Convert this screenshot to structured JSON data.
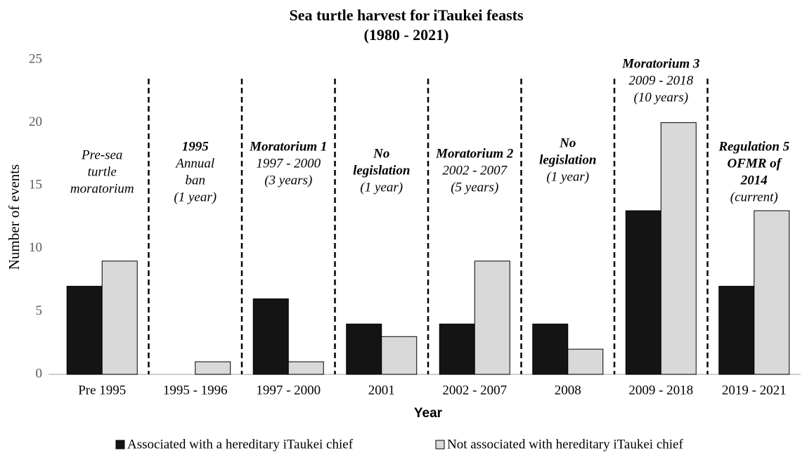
{
  "chart_data": {
    "type": "bar",
    "title": "Sea turtle harvest for iTaukei feasts",
    "subtitle": "(1980 - 2021)",
    "x_label": "Year",
    "y_label": "Number of events",
    "categories": [
      "Pre 1995",
      "1995 - 1996",
      "1997 - 2000",
      "2001",
      "2002 - 2007",
      "2008",
      "2009 - 2018",
      "2019 - 2021"
    ],
    "series": [
      {
        "name": "Associated with a hereditary iTaukei chief",
        "color": "#141414",
        "values": [
          7,
          0,
          6,
          4,
          4,
          4,
          13,
          7
        ]
      },
      {
        "name": "Not associated with hereditary iTaukei chief",
        "color": "#d9d9d9",
        "values": [
          9,
          1,
          1,
          3,
          9,
          2,
          20,
          13
        ]
      }
    ],
    "ylim": [
      0,
      25
    ],
    "yticks": [
      0,
      5,
      10,
      15,
      20,
      25
    ],
    "grid": false,
    "annotations": [
      {
        "heading": [],
        "lines": [
          "Pre-sea",
          "turtle",
          "moratorium"
        ]
      },
      {
        "heading": [
          "1995"
        ],
        "lines": [
          "Annual",
          "ban",
          "(1 year)"
        ]
      },
      {
        "heading": [
          "Moratorium 1"
        ],
        "lines": [
          "1997 - 2000",
          "(3 years)"
        ]
      },
      {
        "heading": [
          "No",
          "legislation"
        ],
        "lines": [
          "(1 year)"
        ]
      },
      {
        "heading": [
          "Moratorium 2"
        ],
        "lines": [
          "2002 - 2007",
          "(5 years)"
        ]
      },
      {
        "heading": [
          "No",
          "legislation"
        ],
        "lines": [
          "(1 year)"
        ]
      },
      {
        "heading": [
          "Moratorium 3"
        ],
        "lines": [
          "2009 - 2018",
          "(10 years)"
        ]
      },
      {
        "heading": [
          "Regulation 5",
          "OFMR of",
          "2014"
        ],
        "lines": [
          "(current)"
        ]
      }
    ]
  }
}
